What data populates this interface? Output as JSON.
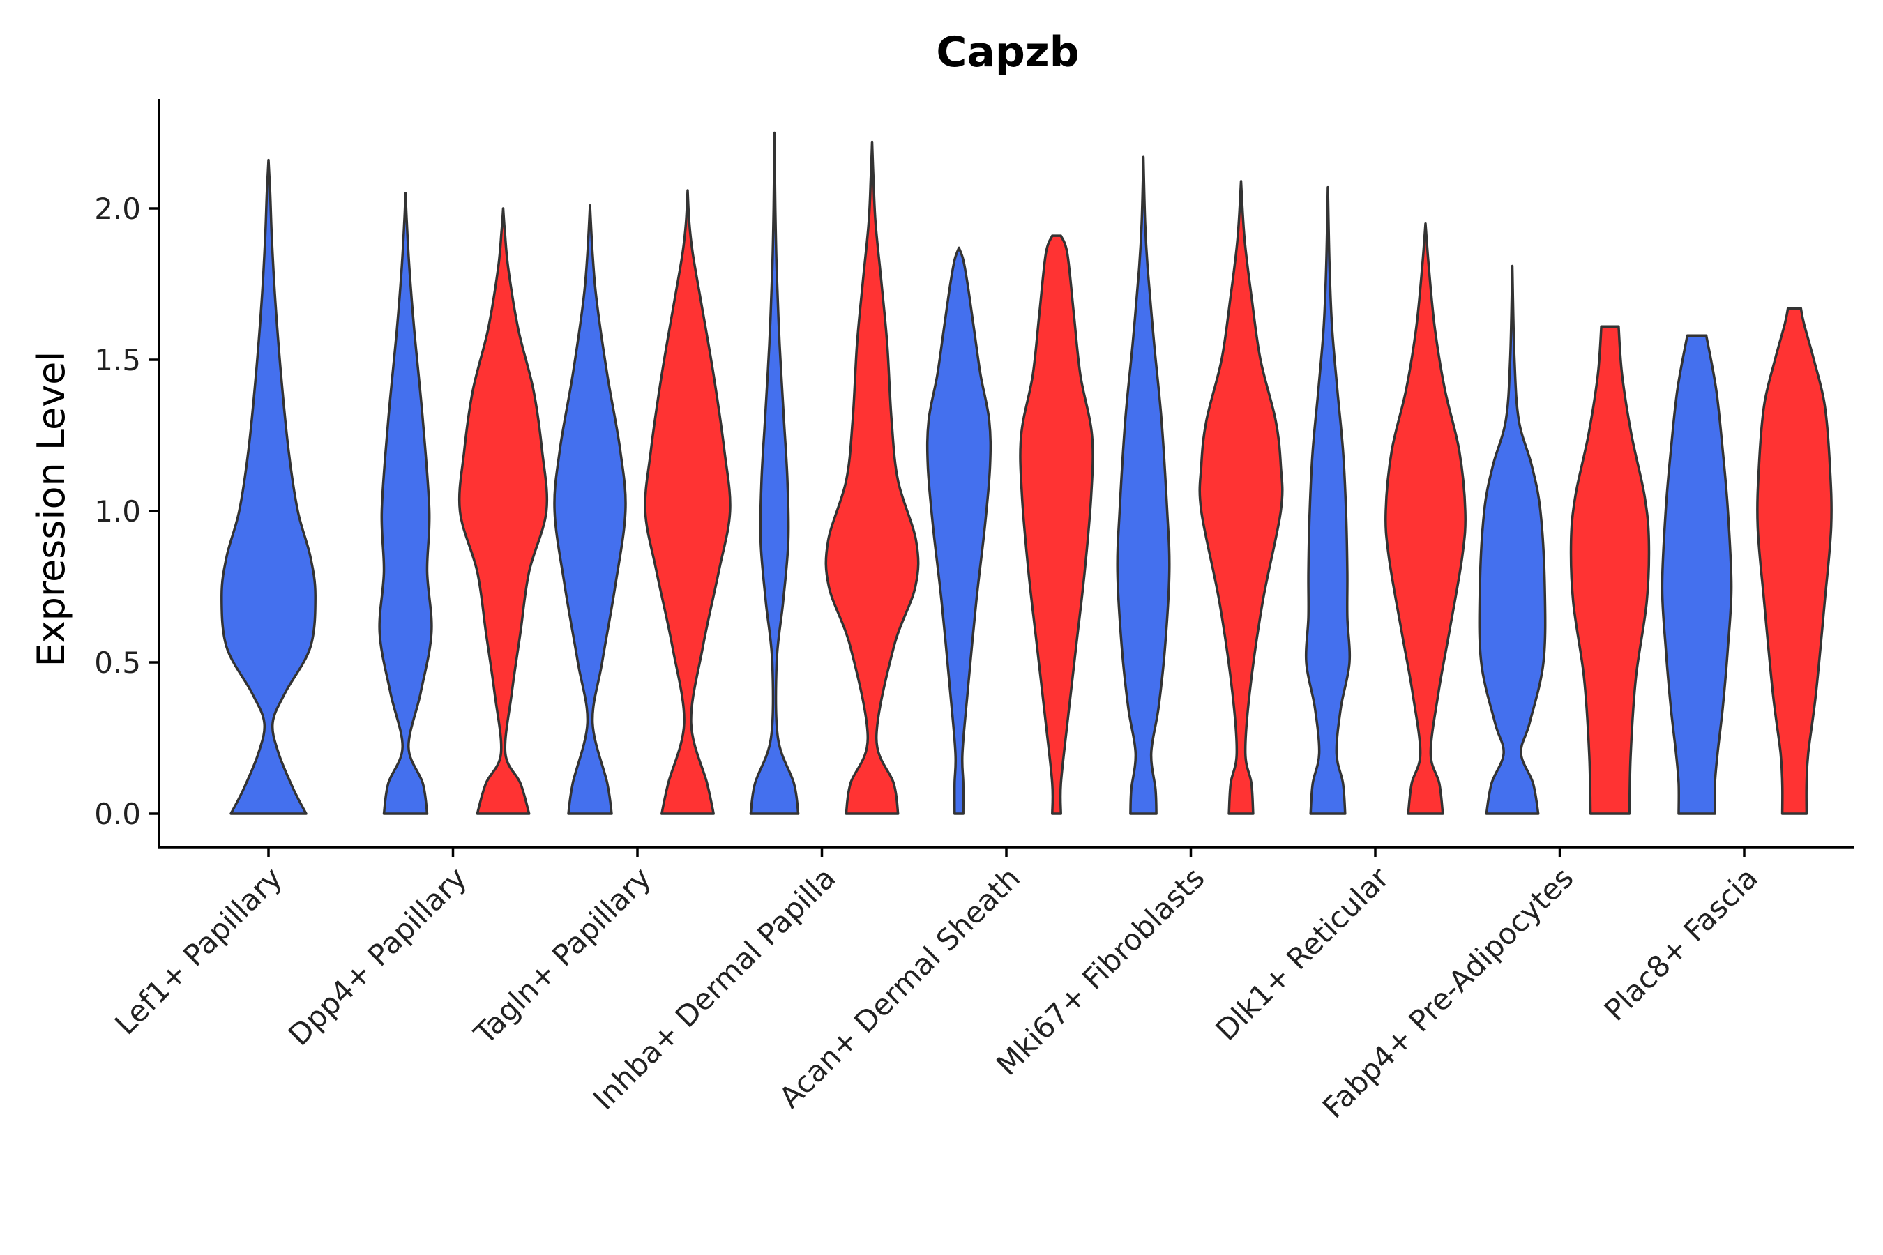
{
  "chart_data": {
    "type": "violin",
    "title": "Capzb",
    "xlabel": "",
    "ylabel": "Expression Level",
    "ylim": [
      -0.11,
      2.37
    ],
    "yticks": [
      "0.0",
      "0.5",
      "1.0",
      "1.5",
      "2.0"
    ],
    "ytick_values": [
      0.0,
      0.5,
      1.0,
      1.5,
      2.0
    ],
    "grid": false,
    "legend": "none",
    "categories": [
      "Lef1+ Papillary",
      "Dpp4+ Papillary",
      "Tagln+ Papillary",
      "Inhba+ Dermal Papilla",
      "Acan+ Dermal Sheath",
      "Mki67+ Fibroblasts",
      "Dlk1+ Reticular",
      "Fabp4+ Pre-Adipocytes",
      "Plac8+ Fascia"
    ],
    "colors": {
      "blue": "#4470EE",
      "red": "#FF3333"
    },
    "violins": [
      {
        "category": 0,
        "color": "blue",
        "max": 2.16,
        "profile": [
          [
            0.0,
            0.45
          ],
          [
            0.08,
            0.3
          ],
          [
            0.2,
            0.12
          ],
          [
            0.3,
            0.05
          ],
          [
            0.4,
            0.2
          ],
          [
            0.55,
            0.5
          ],
          [
            0.72,
            0.56
          ],
          [
            0.85,
            0.5
          ],
          [
            1.0,
            0.35
          ],
          [
            1.2,
            0.24
          ],
          [
            1.45,
            0.15
          ],
          [
            1.7,
            0.08
          ],
          [
            1.9,
            0.04
          ],
          [
            2.05,
            0.02
          ],
          [
            2.16,
            0.0
          ]
        ]
      },
      {
        "category": 1,
        "color": "blue",
        "max": 2.05,
        "profile": [
          [
            0.0,
            0.5
          ],
          [
            0.1,
            0.4
          ],
          [
            0.22,
            0.07
          ],
          [
            0.4,
            0.35
          ],
          [
            0.6,
            0.6
          ],
          [
            0.8,
            0.5
          ],
          [
            1.0,
            0.55
          ],
          [
            1.3,
            0.4
          ],
          [
            1.6,
            0.2
          ],
          [
            1.8,
            0.09
          ],
          [
            1.95,
            0.03
          ],
          [
            2.05,
            0.0
          ]
        ]
      },
      {
        "category": 1,
        "color": "red",
        "max": 2.0,
        "profile": [
          [
            0.0,
            0.6
          ],
          [
            0.1,
            0.4
          ],
          [
            0.2,
            0.05
          ],
          [
            0.4,
            0.2
          ],
          [
            0.6,
            0.4
          ],
          [
            0.8,
            0.6
          ],
          [
            1.0,
            1.0
          ],
          [
            1.2,
            0.9
          ],
          [
            1.4,
            0.7
          ],
          [
            1.6,
            0.35
          ],
          [
            1.8,
            0.12
          ],
          [
            1.92,
            0.04
          ],
          [
            2.0,
            0.0
          ]
        ]
      },
      {
        "category": 2,
        "color": "blue",
        "max": 2.01,
        "profile": [
          [
            0.0,
            0.5
          ],
          [
            0.1,
            0.4
          ],
          [
            0.3,
            0.06
          ],
          [
            0.5,
            0.28
          ],
          [
            0.75,
            0.58
          ],
          [
            1.0,
            0.82
          ],
          [
            1.2,
            0.7
          ],
          [
            1.45,
            0.4
          ],
          [
            1.7,
            0.15
          ],
          [
            1.85,
            0.06
          ],
          [
            2.01,
            0.0
          ]
        ]
      },
      {
        "category": 2,
        "color": "red",
        "max": 2.06,
        "profile": [
          [
            0.0,
            0.6
          ],
          [
            0.1,
            0.45
          ],
          [
            0.3,
            0.08
          ],
          [
            0.55,
            0.35
          ],
          [
            0.8,
            0.72
          ],
          [
            1.0,
            0.98
          ],
          [
            1.2,
            0.85
          ],
          [
            1.45,
            0.6
          ],
          [
            1.7,
            0.3
          ],
          [
            1.85,
            0.12
          ],
          [
            1.95,
            0.04
          ],
          [
            2.06,
            0.0
          ]
        ]
      },
      {
        "category": 3,
        "color": "blue",
        "max": 2.25,
        "profile": [
          [
            0.0,
            0.55
          ],
          [
            0.1,
            0.45
          ],
          [
            0.25,
            0.08
          ],
          [
            0.5,
            0.05
          ],
          [
            0.7,
            0.2
          ],
          [
            0.9,
            0.32
          ],
          [
            1.1,
            0.3
          ],
          [
            1.3,
            0.22
          ],
          [
            1.55,
            0.12
          ],
          [
            1.8,
            0.05
          ],
          [
            2.0,
            0.02
          ],
          [
            2.25,
            0.0
          ]
        ]
      },
      {
        "category": 3,
        "color": "red",
        "max": 2.22,
        "profile": [
          [
            0.0,
            0.6
          ],
          [
            0.1,
            0.5
          ],
          [
            0.25,
            0.1
          ],
          [
            0.55,
            0.5
          ],
          [
            0.75,
            1.0
          ],
          [
            0.9,
            1.02
          ],
          [
            1.1,
            0.6
          ],
          [
            1.3,
            0.45
          ],
          [
            1.55,
            0.35
          ],
          [
            1.75,
            0.22
          ],
          [
            1.95,
            0.08
          ],
          [
            2.1,
            0.03
          ],
          [
            2.22,
            0.0
          ]
        ]
      },
      {
        "category": 4,
        "color": "blue",
        "max": 1.87,
        "profile": [
          [
            0.0,
            0.1
          ],
          [
            0.1,
            0.1
          ],
          [
            0.2,
            0.08
          ],
          [
            0.4,
            0.2
          ],
          [
            0.7,
            0.4
          ],
          [
            0.95,
            0.6
          ],
          [
            1.15,
            0.72
          ],
          [
            1.3,
            0.7
          ],
          [
            1.45,
            0.5
          ],
          [
            1.6,
            0.35
          ],
          [
            1.75,
            0.2
          ],
          [
            1.83,
            0.1
          ],
          [
            1.87,
            0.0
          ]
        ]
      },
      {
        "category": 4,
        "color": "red",
        "max": 1.91,
        "profile": [
          [
            0.0,
            0.1
          ],
          [
            0.1,
            0.1
          ],
          [
            0.3,
            0.25
          ],
          [
            0.55,
            0.45
          ],
          [
            0.8,
            0.65
          ],
          [
            1.05,
            0.8
          ],
          [
            1.25,
            0.82
          ],
          [
            1.45,
            0.55
          ],
          [
            1.65,
            0.4
          ],
          [
            1.85,
            0.25
          ],
          [
            1.91,
            0.1
          ]
        ]
      },
      {
        "category": 5,
        "color": "blue",
        "max": 2.17,
        "profile": [
          [
            0.0,
            0.3
          ],
          [
            0.08,
            0.28
          ],
          [
            0.2,
            0.18
          ],
          [
            0.35,
            0.35
          ],
          [
            0.55,
            0.5
          ],
          [
            0.8,
            0.6
          ],
          [
            1.0,
            0.55
          ],
          [
            1.3,
            0.42
          ],
          [
            1.55,
            0.25
          ],
          [
            1.8,
            0.1
          ],
          [
            1.95,
            0.04
          ],
          [
            2.17,
            0.0
          ]
        ]
      },
      {
        "category": 5,
        "color": "red",
        "max": 2.09,
        "profile": [
          [
            0.0,
            0.28
          ],
          [
            0.1,
            0.24
          ],
          [
            0.2,
            0.1
          ],
          [
            0.4,
            0.2
          ],
          [
            0.7,
            0.5
          ],
          [
            1.0,
            0.92
          ],
          [
            1.15,
            0.92
          ],
          [
            1.3,
            0.8
          ],
          [
            1.5,
            0.45
          ],
          [
            1.7,
            0.25
          ],
          [
            1.9,
            0.08
          ],
          [
            2.09,
            0.0
          ]
        ]
      },
      {
        "category": 6,
        "color": "blue",
        "max": 2.07,
        "profile": [
          [
            0.0,
            0.4
          ],
          [
            0.1,
            0.35
          ],
          [
            0.2,
            0.2
          ],
          [
            0.35,
            0.3
          ],
          [
            0.5,
            0.5
          ],
          [
            0.65,
            0.45
          ],
          [
            0.8,
            0.45
          ],
          [
            1.0,
            0.42
          ],
          [
            1.2,
            0.35
          ],
          [
            1.4,
            0.22
          ],
          [
            1.6,
            0.1
          ],
          [
            1.8,
            0.04
          ],
          [
            2.07,
            0.0
          ]
        ]
      },
      {
        "category": 6,
        "color": "red",
        "max": 1.95,
        "profile": [
          [
            0.0,
            0.4
          ],
          [
            0.1,
            0.32
          ],
          [
            0.2,
            0.12
          ],
          [
            0.4,
            0.3
          ],
          [
            0.6,
            0.55
          ],
          [
            0.85,
            0.85
          ],
          [
            1.0,
            0.92
          ],
          [
            1.2,
            0.78
          ],
          [
            1.4,
            0.45
          ],
          [
            1.6,
            0.22
          ],
          [
            1.8,
            0.08
          ],
          [
            1.95,
            0.0
          ]
        ]
      },
      {
        "category": 7,
        "color": "blue",
        "max": 1.81,
        "profile": [
          [
            0.0,
            0.6
          ],
          [
            0.1,
            0.48
          ],
          [
            0.2,
            0.2
          ],
          [
            0.3,
            0.4
          ],
          [
            0.5,
            0.72
          ],
          [
            0.75,
            0.75
          ],
          [
            1.0,
            0.65
          ],
          [
            1.15,
            0.45
          ],
          [
            1.3,
            0.15
          ],
          [
            1.5,
            0.05
          ],
          [
            1.81,
            0.0
          ]
        ]
      },
      {
        "category": 7,
        "color": "red",
        "max": 1.61,
        "profile": [
          [
            0.0,
            0.45
          ],
          [
            0.2,
            0.48
          ],
          [
            0.45,
            0.6
          ],
          [
            0.7,
            0.85
          ],
          [
            0.9,
            0.9
          ],
          [
            1.05,
            0.8
          ],
          [
            1.25,
            0.5
          ],
          [
            1.45,
            0.28
          ],
          [
            1.61,
            0.2
          ]
        ]
      },
      {
        "category": 8,
        "color": "blue",
        "max": 1.58,
        "profile": [
          [
            0.0,
            0.42
          ],
          [
            0.1,
            0.42
          ],
          [
            0.2,
            0.48
          ],
          [
            0.35,
            0.6
          ],
          [
            0.55,
            0.72
          ],
          [
            0.75,
            0.8
          ],
          [
            1.0,
            0.72
          ],
          [
            1.2,
            0.6
          ],
          [
            1.4,
            0.45
          ],
          [
            1.58,
            0.22
          ]
        ]
      },
      {
        "category": 8,
        "color": "red",
        "max": 1.67,
        "profile": [
          [
            0.0,
            0.28
          ],
          [
            0.1,
            0.28
          ],
          [
            0.2,
            0.32
          ],
          [
            0.4,
            0.5
          ],
          [
            0.7,
            0.7
          ],
          [
            0.95,
            0.85
          ],
          [
            1.15,
            0.82
          ],
          [
            1.35,
            0.7
          ],
          [
            1.5,
            0.45
          ],
          [
            1.62,
            0.22
          ],
          [
            1.67,
            0.15
          ]
        ]
      }
    ]
  }
}
